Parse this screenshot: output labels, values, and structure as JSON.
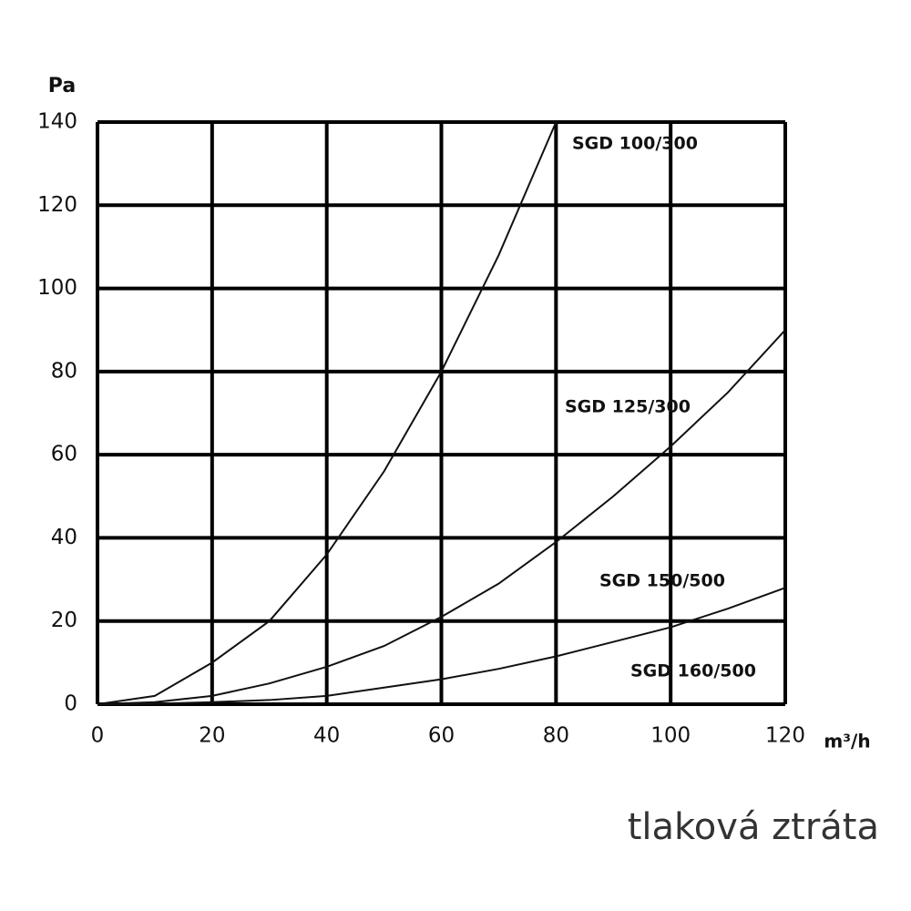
{
  "chart_data": {
    "type": "line",
    "y_label": "Pa",
    "x_label": "m³/h",
    "x": [
      0,
      10,
      20,
      30,
      40,
      50,
      60,
      70,
      80,
      90,
      100,
      110,
      120
    ],
    "series": [
      {
        "name": "SGD 100/300",
        "color": "#111111",
        "values": [
          0,
          2,
          10,
          20,
          36,
          56,
          80,
          108,
          140,
          null,
          null,
          null,
          null
        ]
      },
      {
        "name": "SGD 125/300",
        "color": "#111111",
        "values": [
          0,
          0.5,
          2,
          5,
          9,
          14,
          21,
          29,
          39,
          50,
          62,
          75,
          90
        ]
      },
      {
        "name": "SGD 150/500",
        "color": "#111111",
        "values": [
          0,
          0.1,
          0.5,
          1,
          2,
          4,
          6,
          8.5,
          11.5,
          15,
          18.5,
          23,
          28
        ]
      }
    ],
    "annotations": [
      "SGD 160/500"
    ],
    "xlim": [
      0,
      120
    ],
    "xticks": [
      0,
      20,
      40,
      60,
      80,
      100,
      120
    ],
    "ylim": [
      0,
      140
    ],
    "yticks": [
      0,
      20,
      40,
      60,
      80,
      100,
      120,
      140
    ],
    "grid": true
  },
  "footer": "tlaková ztráta"
}
